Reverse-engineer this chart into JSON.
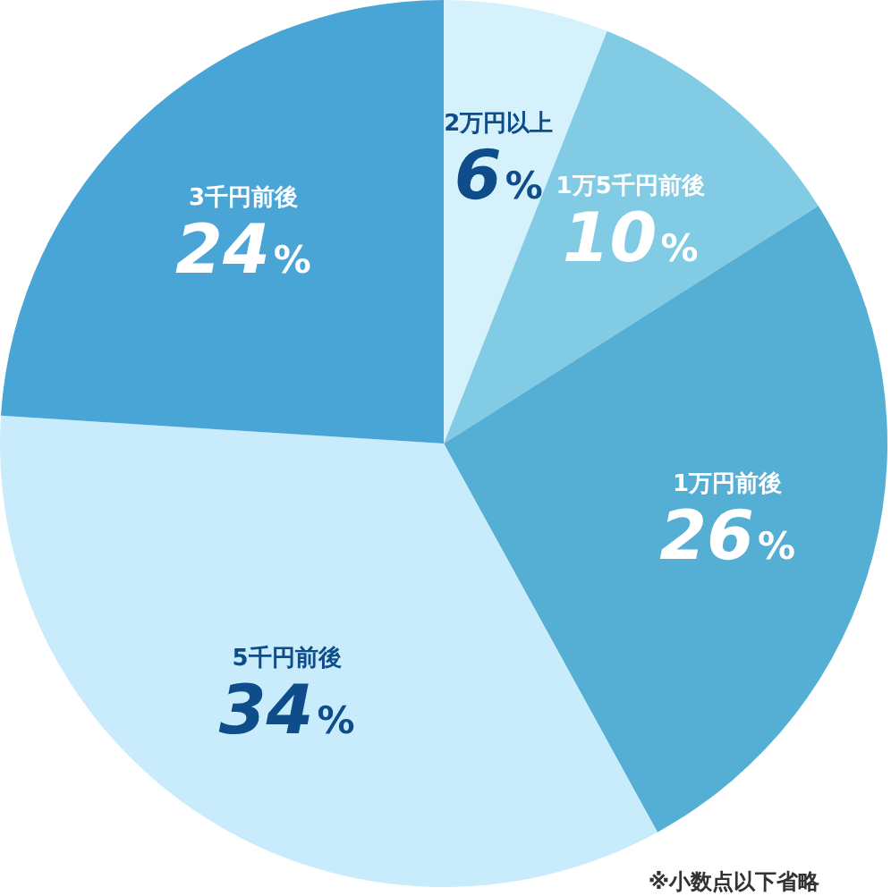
{
  "chart_data": {
    "type": "pie",
    "categories": [
      "2万円以上",
      "1万5千円前後",
      "1万円前後",
      "5千円前後",
      "3千円前後"
    ],
    "values": [
      6,
      10,
      26,
      34,
      24
    ],
    "value_labels": [
      "6%",
      "10%",
      "26%",
      "34%",
      "24%"
    ],
    "colors": [
      "#d5f2fc",
      "#82cbe5",
      "#55aed3",
      "#c8ecfb",
      "#4aa5d7"
    ],
    "annotations": [
      "※小数点以下省略"
    ]
  }
}
